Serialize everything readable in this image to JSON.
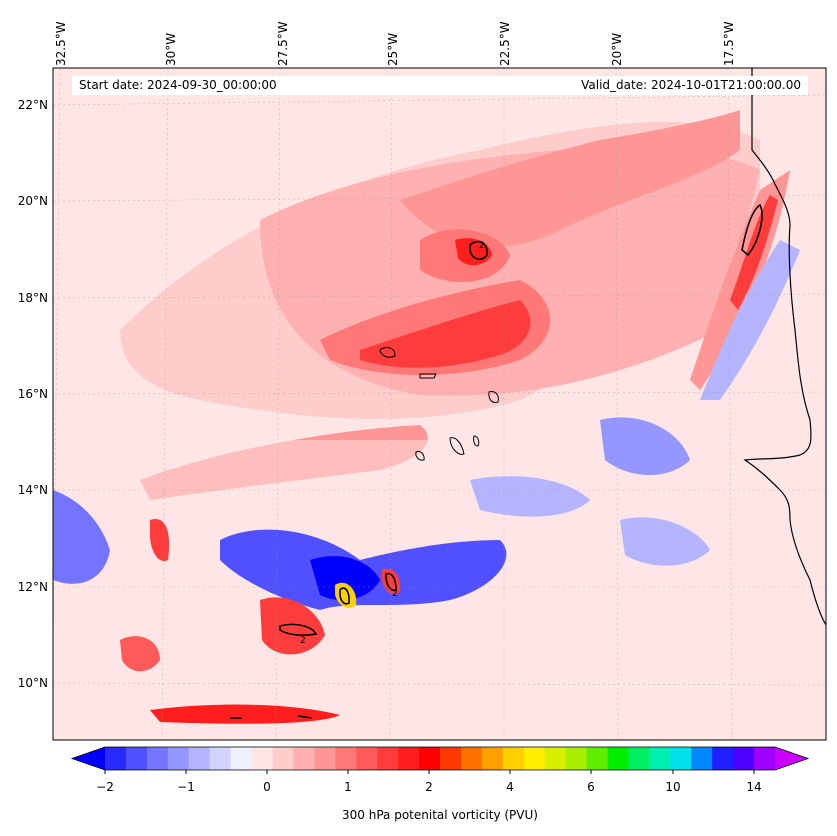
{
  "header": {
    "start_date": "Start date: 2024-09-30_00:00:00",
    "valid_date": "Valid_date: 2024-10-01T21:00:00.00"
  },
  "map": {
    "lon_labels": [
      "32.5°W",
      "30°W",
      "27.5°W",
      "25°W",
      "22.5°W",
      "20°W",
      "17.5°W"
    ],
    "lat_labels": [
      "22°N",
      "20°N",
      "18°N",
      "16°N",
      "14°N",
      "12°N",
      "10°N"
    ],
    "contour_label": "2",
    "features": {
      "coastline": "West Africa coast (Mauritania / Senegal)",
      "islands": "Cape Verde Islands"
    }
  },
  "colorbar": {
    "ticks": [
      "−2",
      "−1",
      "0",
      "1",
      "2",
      "4",
      "6",
      "10",
      "14"
    ],
    "label": "300 hPa potenital vorticity (PVU)",
    "colors": [
      "#0000ff",
      "#2a2aff",
      "#5050ff",
      "#7474ff",
      "#9696ff",
      "#b4b4ff",
      "#d2d2ff",
      "#eef0ff",
      "#ffe6e6",
      "#ffcccc",
      "#ffb0b0",
      "#ff9696",
      "#ff7878",
      "#ff5a5a",
      "#ff3c3c",
      "#ff1e1e",
      "#ff0000",
      "#ff3a00",
      "#ff7000",
      "#ffa000",
      "#ffd000",
      "#ffee00",
      "#d8f000",
      "#a8ee00",
      "#60ee00",
      "#00ee00",
      "#00ee60",
      "#00eeb0",
      "#00e0e8",
      "#0088ff",
      "#2020ff",
      "#5000ff",
      "#a000ff",
      "#cc00ff"
    ]
  }
}
